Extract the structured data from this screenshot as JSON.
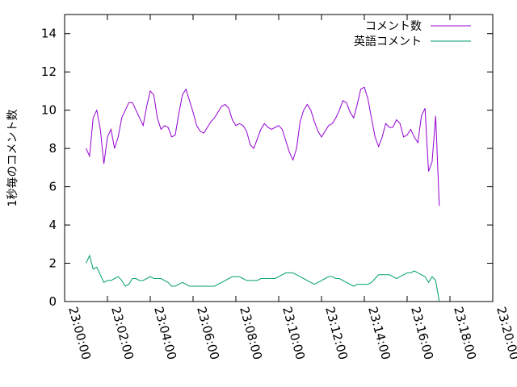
{
  "chart_data": {
    "type": "line",
    "xlabel": "",
    "ylabel": "1秒毎のコメント数",
    "xlim": [
      "23:00:00",
      "23:20:00"
    ],
    "ylim": [
      0,
      15
    ],
    "x_ticks": [
      "23:00:00",
      "23:02:00",
      "23:04:00",
      "23:06:00",
      "23:08:00",
      "23:10:00",
      "23:12:00",
      "23:14:00",
      "23:16:00",
      "23:18:00",
      "23:20:00"
    ],
    "y_ticks": [
      0,
      2,
      4,
      6,
      8,
      10,
      12,
      14
    ],
    "grid": false,
    "legend_position": "top-right",
    "series": [
      {
        "name": "コメント数",
        "color": "#9400d3",
        "points": [
          [
            "23:01:00",
            8.0
          ],
          [
            "23:01:10",
            7.6
          ],
          [
            "23:01:20",
            9.6
          ],
          [
            "23:01:30",
            10.0
          ],
          [
            "23:01:40",
            9.0
          ],
          [
            "23:01:50",
            7.2
          ],
          [
            "23:02:00",
            8.6
          ],
          [
            "23:02:10",
            9.0
          ],
          [
            "23:02:20",
            8.0
          ],
          [
            "23:02:30",
            8.6
          ],
          [
            "23:02:40",
            9.6
          ],
          [
            "23:02:50",
            10.0
          ],
          [
            "23:03:00",
            10.4
          ],
          [
            "23:03:10",
            10.4
          ],
          [
            "23:03:20",
            10.0
          ],
          [
            "23:03:30",
            9.6
          ],
          [
            "23:03:40",
            9.2
          ],
          [
            "23:03:50",
            10.2
          ],
          [
            "23:04:00",
            11.0
          ],
          [
            "23:04:10",
            10.8
          ],
          [
            "23:04:20",
            9.6
          ],
          [
            "23:04:30",
            9.0
          ],
          [
            "23:04:40",
            9.2
          ],
          [
            "23:04:50",
            9.1
          ],
          [
            "23:05:00",
            8.6
          ],
          [
            "23:05:10",
            8.7
          ],
          [
            "23:05:20",
            9.8
          ],
          [
            "23:05:30",
            10.8
          ],
          [
            "23:05:40",
            11.1
          ],
          [
            "23:05:50",
            10.5
          ],
          [
            "23:06:00",
            9.9
          ],
          [
            "23:06:10",
            9.2
          ],
          [
            "23:06:20",
            8.9
          ],
          [
            "23:06:30",
            8.8
          ],
          [
            "23:06:40",
            9.1
          ],
          [
            "23:06:50",
            9.4
          ],
          [
            "23:07:00",
            9.6
          ],
          [
            "23:07:10",
            9.9
          ],
          [
            "23:07:20",
            10.2
          ],
          [
            "23:07:30",
            10.3
          ],
          [
            "23:07:40",
            10.1
          ],
          [
            "23:07:50",
            9.5
          ],
          [
            "23:08:00",
            9.2
          ],
          [
            "23:08:10",
            9.3
          ],
          [
            "23:08:20",
            9.2
          ],
          [
            "23:08:30",
            8.9
          ],
          [
            "23:08:40",
            8.2
          ],
          [
            "23:08:50",
            8.0
          ],
          [
            "23:09:00",
            8.5
          ],
          [
            "23:09:10",
            9.0
          ],
          [
            "23:09:20",
            9.3
          ],
          [
            "23:09:30",
            9.1
          ],
          [
            "23:09:40",
            9.0
          ],
          [
            "23:09:50",
            9.1
          ],
          [
            "23:10:00",
            9.2
          ],
          [
            "23:10:10",
            9.0
          ],
          [
            "23:10:20",
            8.4
          ],
          [
            "23:10:30",
            7.8
          ],
          [
            "23:10:40",
            7.4
          ],
          [
            "23:10:50",
            8.0
          ],
          [
            "23:11:00",
            9.4
          ],
          [
            "23:11:10",
            10.0
          ],
          [
            "23:11:20",
            10.3
          ],
          [
            "23:11:30",
            10.0
          ],
          [
            "23:11:40",
            9.4
          ],
          [
            "23:11:50",
            8.9
          ],
          [
            "23:12:00",
            8.6
          ],
          [
            "23:12:10",
            8.9
          ],
          [
            "23:12:20",
            9.2
          ],
          [
            "23:12:30",
            9.3
          ],
          [
            "23:12:40",
            9.6
          ],
          [
            "23:12:50",
            10.0
          ],
          [
            "23:13:00",
            10.5
          ],
          [
            "23:13:10",
            10.4
          ],
          [
            "23:13:20",
            9.9
          ],
          [
            "23:13:30",
            9.6
          ],
          [
            "23:13:40",
            10.3
          ],
          [
            "23:13:50",
            11.1
          ],
          [
            "23:14:00",
            11.2
          ],
          [
            "23:14:10",
            10.6
          ],
          [
            "23:14:20",
            9.6
          ],
          [
            "23:14:30",
            8.6
          ],
          [
            "23:14:40",
            8.1
          ],
          [
            "23:14:50",
            8.6
          ],
          [
            "23:15:00",
            9.3
          ],
          [
            "23:15:10",
            9.1
          ],
          [
            "23:15:20",
            9.1
          ],
          [
            "23:15:30",
            9.5
          ],
          [
            "23:15:40",
            9.3
          ],
          [
            "23:15:50",
            8.6
          ],
          [
            "23:16:00",
            8.7
          ],
          [
            "23:16:10",
            9.0
          ],
          [
            "23:16:20",
            8.6
          ],
          [
            "23:16:30",
            8.3
          ],
          [
            "23:16:40",
            9.7
          ],
          [
            "23:16:50",
            10.1
          ],
          [
            "23:17:00",
            6.8
          ],
          [
            "23:17:10",
            7.3
          ],
          [
            "23:17:20",
            9.7
          ],
          [
            "23:17:30",
            5.0
          ]
        ]
      },
      {
        "name": "英語コメント",
        "color": "#009e73",
        "points": [
          [
            "23:01:00",
            2.0
          ],
          [
            "23:01:10",
            2.4
          ],
          [
            "23:01:20",
            1.7
          ],
          [
            "23:01:30",
            1.8
          ],
          [
            "23:01:40",
            1.4
          ],
          [
            "23:01:50",
            1.0
          ],
          [
            "23:02:00",
            1.1
          ],
          [
            "23:02:10",
            1.1
          ],
          [
            "23:02:20",
            1.2
          ],
          [
            "23:02:30",
            1.3
          ],
          [
            "23:02:40",
            1.1
          ],
          [
            "23:02:50",
            0.8
          ],
          [
            "23:03:00",
            0.9
          ],
          [
            "23:03:10",
            1.2
          ],
          [
            "23:03:20",
            1.2
          ],
          [
            "23:03:30",
            1.1
          ],
          [
            "23:03:40",
            1.1
          ],
          [
            "23:03:50",
            1.2
          ],
          [
            "23:04:00",
            1.3
          ],
          [
            "23:04:10",
            1.2
          ],
          [
            "23:04:20",
            1.2
          ],
          [
            "23:04:30",
            1.2
          ],
          [
            "23:04:40",
            1.1
          ],
          [
            "23:04:50",
            1.0
          ],
          [
            "23:05:00",
            0.8
          ],
          [
            "23:05:10",
            0.8
          ],
          [
            "23:05:20",
            0.9
          ],
          [
            "23:05:30",
            1.0
          ],
          [
            "23:05:40",
            0.9
          ],
          [
            "23:05:50",
            0.8
          ],
          [
            "23:06:00",
            0.8
          ],
          [
            "23:06:10",
            0.8
          ],
          [
            "23:06:20",
            0.8
          ],
          [
            "23:06:30",
            0.8
          ],
          [
            "23:06:40",
            0.8
          ],
          [
            "23:06:50",
            0.8
          ],
          [
            "23:07:00",
            0.8
          ],
          [
            "23:07:10",
            0.9
          ],
          [
            "23:07:20",
            1.0
          ],
          [
            "23:07:30",
            1.1
          ],
          [
            "23:07:40",
            1.2
          ],
          [
            "23:07:50",
            1.3
          ],
          [
            "23:08:00",
            1.3
          ],
          [
            "23:08:10",
            1.3
          ],
          [
            "23:08:20",
            1.2
          ],
          [
            "23:08:30",
            1.1
          ],
          [
            "23:08:40",
            1.1
          ],
          [
            "23:08:50",
            1.1
          ],
          [
            "23:09:00",
            1.1
          ],
          [
            "23:09:10",
            1.2
          ],
          [
            "23:09:20",
            1.2
          ],
          [
            "23:09:30",
            1.2
          ],
          [
            "23:09:40",
            1.2
          ],
          [
            "23:09:50",
            1.2
          ],
          [
            "23:10:00",
            1.3
          ],
          [
            "23:10:10",
            1.4
          ],
          [
            "23:10:20",
            1.5
          ],
          [
            "23:10:30",
            1.5
          ],
          [
            "23:10:40",
            1.5
          ],
          [
            "23:10:50",
            1.4
          ],
          [
            "23:11:00",
            1.3
          ],
          [
            "23:11:10",
            1.2
          ],
          [
            "23:11:20",
            1.1
          ],
          [
            "23:11:30",
            1.0
          ],
          [
            "23:11:40",
            0.9
          ],
          [
            "23:11:50",
            1.0
          ],
          [
            "23:12:00",
            1.1
          ],
          [
            "23:12:10",
            1.2
          ],
          [
            "23:12:20",
            1.3
          ],
          [
            "23:12:30",
            1.3
          ],
          [
            "23:12:40",
            1.2
          ],
          [
            "23:12:50",
            1.2
          ],
          [
            "23:13:00",
            1.1
          ],
          [
            "23:13:10",
            1.0
          ],
          [
            "23:13:20",
            0.9
          ],
          [
            "23:13:30",
            0.8
          ],
          [
            "23:13:40",
            0.9
          ],
          [
            "23:13:50",
            0.9
          ],
          [
            "23:14:00",
            0.9
          ],
          [
            "23:14:10",
            0.9
          ],
          [
            "23:14:20",
            1.0
          ],
          [
            "23:14:30",
            1.2
          ],
          [
            "23:14:40",
            1.4
          ],
          [
            "23:14:50",
            1.4
          ],
          [
            "23:15:00",
            1.4
          ],
          [
            "23:15:10",
            1.4
          ],
          [
            "23:15:20",
            1.3
          ],
          [
            "23:15:30",
            1.2
          ],
          [
            "23:15:40",
            1.3
          ],
          [
            "23:15:50",
            1.4
          ],
          [
            "23:16:00",
            1.5
          ],
          [
            "23:16:10",
            1.5
          ],
          [
            "23:16:20",
            1.6
          ],
          [
            "23:16:30",
            1.5
          ],
          [
            "23:16:40",
            1.4
          ],
          [
            "23:16:50",
            1.3
          ],
          [
            "23:17:00",
            1.0
          ],
          [
            "23:17:10",
            1.3
          ],
          [
            "23:17:20",
            1.1
          ],
          [
            "23:17:30",
            0.0
          ]
        ]
      }
    ]
  }
}
